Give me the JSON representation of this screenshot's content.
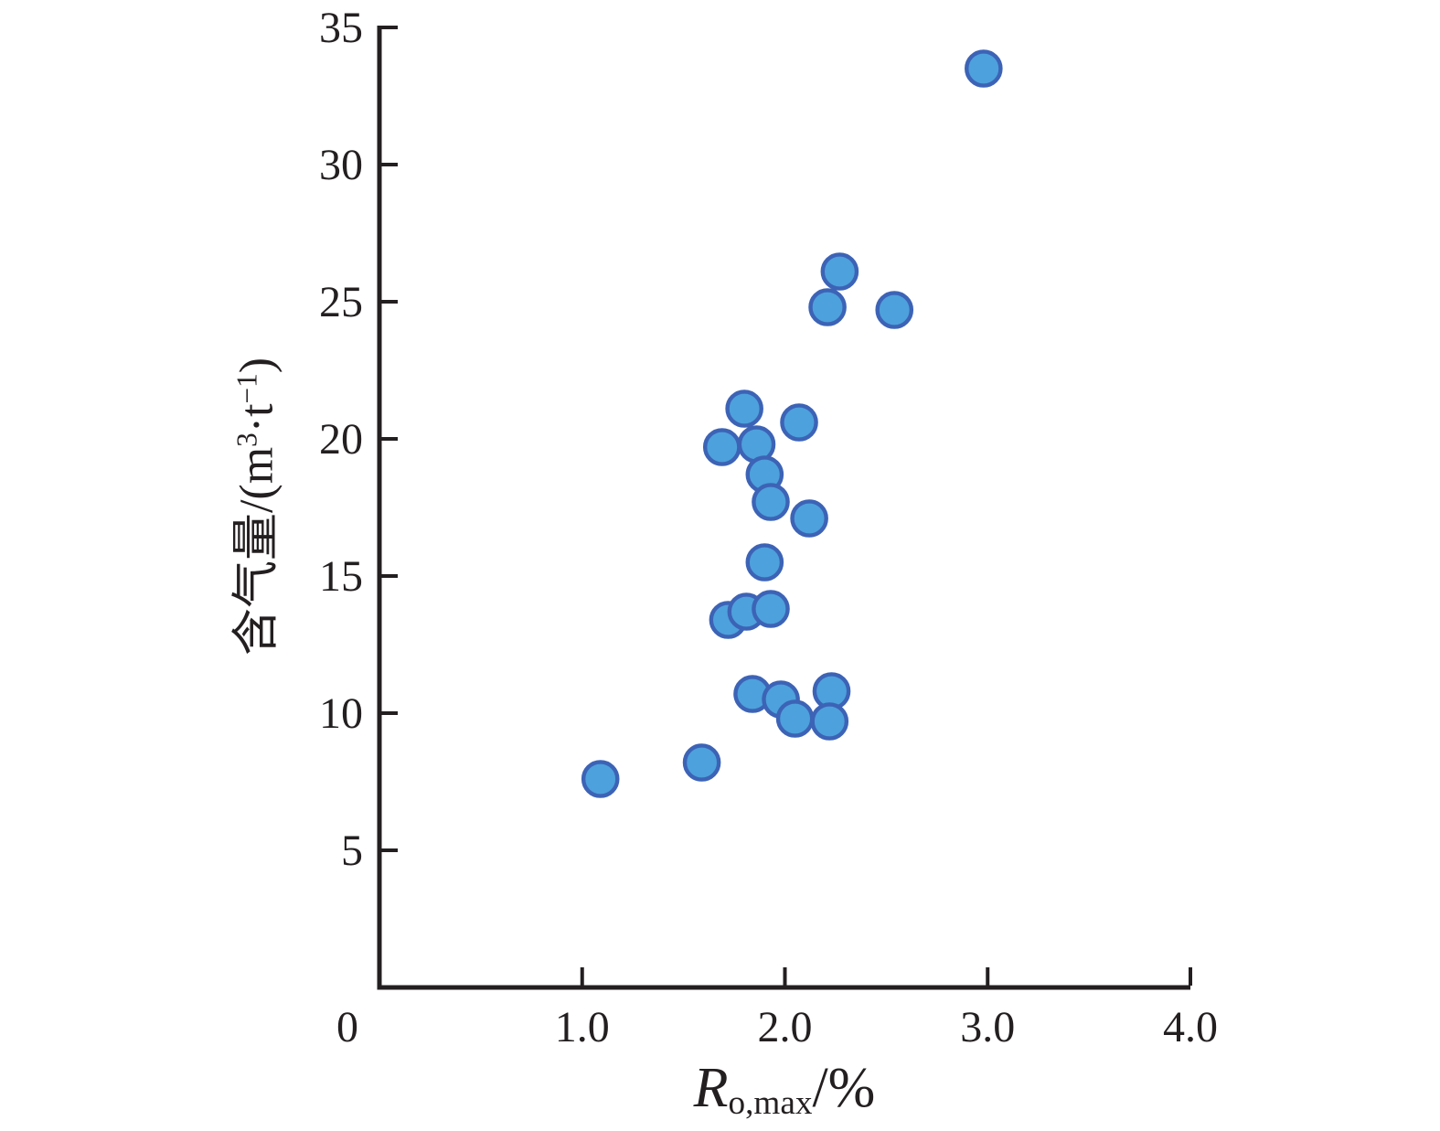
{
  "chart_data": {
    "type": "scatter",
    "title": "",
    "xlabel_plain": "Ro,max/%",
    "ylabel_plain": "含气量/(m3·t−1)",
    "xlabel_parts": [
      {
        "t": "R",
        "italic": true
      },
      {
        "t": "o,max",
        "sub": true
      },
      {
        "t": "/%"
      }
    ],
    "ylabel_parts": [
      {
        "t": "含气量/(m"
      },
      {
        "t": "3",
        "sup": true
      },
      {
        "t": "·t"
      },
      {
        "t": "−1",
        "sup": true
      },
      {
        "t": ")"
      }
    ],
    "xlim": [
      0,
      4
    ],
    "ylim": [
      0,
      35
    ],
    "grid": false,
    "legend": "none",
    "axis_color": "#231f20",
    "x_ticks": [
      {
        "v": 0,
        "label": "0",
        "dx": -35,
        "tick_mark": false
      },
      {
        "v": 1,
        "label": "1.0"
      },
      {
        "v": 2,
        "label": "2.0"
      },
      {
        "v": 3,
        "label": "3.0"
      },
      {
        "v": 4,
        "label": "4.0"
      }
    ],
    "y_ticks": [
      {
        "v": 5,
        "label": "5"
      },
      {
        "v": 10,
        "label": "10"
      },
      {
        "v": 15,
        "label": "15"
      },
      {
        "v": 20,
        "label": "20"
      },
      {
        "v": 25,
        "label": "25"
      },
      {
        "v": 30,
        "label": "30"
      },
      {
        "v": 35,
        "label": "35"
      }
    ],
    "marker": {
      "shape": "circle",
      "fill": "#4da1dc",
      "stroke": "#3c63b6",
      "radius_px": 18.6,
      "stroke_width_px": 4.4
    },
    "points": [
      {
        "x": 2.98,
        "y": 33.5
      },
      {
        "x": 2.27,
        "y": 26.1
      },
      {
        "x": 2.21,
        "y": 24.8
      },
      {
        "x": 2.54,
        "y": 24.7
      },
      {
        "x": 1.8,
        "y": 21.1
      },
      {
        "x": 2.07,
        "y": 20.6
      },
      {
        "x": 1.69,
        "y": 19.7
      },
      {
        "x": 1.86,
        "y": 19.8
      },
      {
        "x": 1.9,
        "y": 18.7
      },
      {
        "x": 1.93,
        "y": 17.7
      },
      {
        "x": 2.12,
        "y": 17.1
      },
      {
        "x": 1.9,
        "y": 15.5
      },
      {
        "x": 1.72,
        "y": 13.4
      },
      {
        "x": 1.81,
        "y": 13.7
      },
      {
        "x": 1.93,
        "y": 13.8
      },
      {
        "x": 2.23,
        "y": 10.8
      },
      {
        "x": 1.84,
        "y": 10.7
      },
      {
        "x": 1.98,
        "y": 10.5
      },
      {
        "x": 2.05,
        "y": 9.8
      },
      {
        "x": 2.22,
        "y": 9.7
      },
      {
        "x": 1.59,
        "y": 8.2
      },
      {
        "x": 1.09,
        "y": 7.6
      }
    ]
  }
}
